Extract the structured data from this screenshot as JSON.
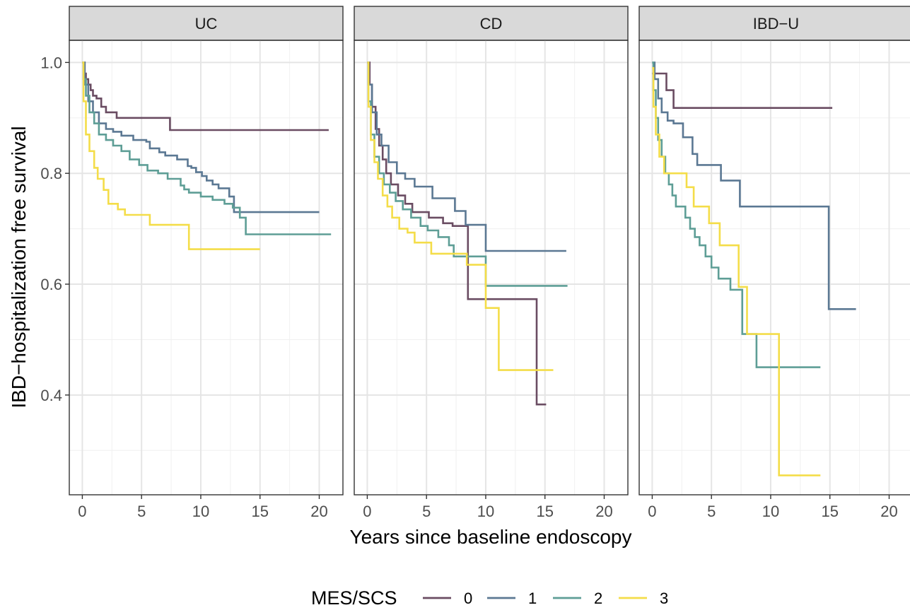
{
  "chart_data": {
    "type": "line",
    "step": true,
    "xlabel": "Years since baseline endoscopy",
    "ylabel": "IBD−hospitalization free survival",
    "xlim": [
      -1.1,
      22
    ],
    "ylim": [
      0.22,
      1.04
    ],
    "x_ticks": [
      0,
      5,
      10,
      15,
      20
    ],
    "y_ticks": [
      0.4,
      0.6,
      0.8,
      1.0
    ],
    "x_tick_labels": [
      "0",
      "5",
      "10",
      "15",
      "20"
    ],
    "y_tick_labels": [
      "0.4",
      "0.6",
      "0.8",
      "1.0"
    ],
    "grid": true,
    "legend": {
      "title": "MES/SCS",
      "position": "bottom",
      "entries": [
        {
          "label": "0",
          "color": "#6a4c62"
        },
        {
          "label": "1",
          "color": "#5b7893"
        },
        {
          "label": "2",
          "color": "#5e9e96"
        },
        {
          "label": "3",
          "color": "#f4dd49"
        }
      ]
    },
    "panels": [
      {
        "title": "UC",
        "series": [
          {
            "name": "0",
            "x": [
              0,
              0.2,
              0.3,
              0.5,
              0.7,
              0.9,
              1.2,
              1.6,
              2.0,
              2.9,
              7.4,
              20.8
            ],
            "y": [
              1.0,
              0.98,
              0.97,
              0.96,
              0.95,
              0.94,
              0.935,
              0.92,
              0.91,
              0.9,
              0.878,
              0.878
            ]
          },
          {
            "name": "1",
            "x": [
              0,
              0.2,
              0.5,
              0.9,
              1.4,
              2.0,
              2.6,
              3.3,
              4.3,
              5.4,
              5.7,
              6.5,
              7.0,
              8.0,
              8.9,
              9.2,
              9.6,
              10.1,
              10.5,
              11.0,
              11.5,
              12.4,
              12.8,
              20.0
            ],
            "y": [
              1.0,
              0.96,
              0.93,
              0.91,
              0.89,
              0.88,
              0.875,
              0.868,
              0.86,
              0.857,
              0.845,
              0.838,
              0.832,
              0.825,
              0.813,
              0.81,
              0.802,
              0.795,
              0.787,
              0.78,
              0.773,
              0.758,
              0.73,
              0.73
            ]
          },
          {
            "name": "2",
            "x": [
              0,
              0.1,
              0.3,
              0.6,
              1.0,
              1.4,
              2.0,
              2.6,
              3.3,
              4.0,
              4.8,
              5.5,
              6.4,
              7.2,
              8.3,
              8.6,
              9.0,
              10.0,
              11.0,
              12.0,
              12.7,
              13.3,
              13.8,
              21.0
            ],
            "y": [
              1.0,
              0.97,
              0.94,
              0.91,
              0.89,
              0.87,
              0.86,
              0.85,
              0.84,
              0.825,
              0.815,
              0.805,
              0.8,
              0.79,
              0.778,
              0.771,
              0.765,
              0.758,
              0.752,
              0.745,
              0.738,
              0.72,
              0.69,
              0.69
            ]
          },
          {
            "name": "3",
            "x": [
              0,
              0.1,
              0.3,
              0.6,
              1.0,
              1.3,
              1.8,
              2.2,
              3.0,
              3.6,
              5.7,
              9.0,
              15.0
            ],
            "y": [
              1.0,
              0.93,
              0.87,
              0.84,
              0.81,
              0.79,
              0.77,
              0.745,
              0.735,
              0.725,
              0.707,
              0.663,
              0.663
            ]
          }
        ]
      },
      {
        "title": "CD",
        "series": [
          {
            "name": "0",
            "x": [
              0,
              0.2,
              0.4,
              0.7,
              1.0,
              1.3,
              1.6,
              2.0,
              2.6,
              3.2,
              3.8,
              5.2,
              6.4,
              7.2,
              8.5,
              14.3,
              15.1
            ],
            "y": [
              1.0,
              0.96,
              0.92,
              0.88,
              0.85,
              0.825,
              0.8,
              0.78,
              0.76,
              0.745,
              0.73,
              0.72,
              0.71,
              0.705,
              0.573,
              0.383,
              0.383
            ]
          },
          {
            "name": "1",
            "x": [
              0,
              0.1,
              0.4,
              0.8,
              1.2,
              1.8,
              2.5,
              3.2,
              4.0,
              5.5,
              7.4,
              8.3,
              10.0,
              16.8
            ],
            "y": [
              1.0,
              0.96,
              0.91,
              0.87,
              0.85,
              0.82,
              0.8,
              0.79,
              0.776,
              0.755,
              0.732,
              0.707,
              0.66,
              0.66
            ]
          },
          {
            "name": "2",
            "x": [
              0,
              0.1,
              0.3,
              0.6,
              1.0,
              1.4,
              1.9,
              2.4,
              3.0,
              3.7,
              4.5,
              5.1,
              6.0,
              6.9,
              7.3,
              10.0,
              16.9
            ],
            "y": [
              1.0,
              0.93,
              0.87,
              0.83,
              0.8,
              0.78,
              0.765,
              0.75,
              0.735,
              0.72,
              0.705,
              0.697,
              0.685,
              0.67,
              0.65,
              0.597,
              0.597
            ]
          },
          {
            "name": "3",
            "x": [
              0,
              0.1,
              0.3,
              0.6,
              0.9,
              1.3,
              1.7,
              2.1,
              2.7,
              3.4,
              4.0,
              5.4,
              8.4,
              10.0,
              11.1,
              15.7
            ],
            "y": [
              1.0,
              0.92,
              0.86,
              0.82,
              0.79,
              0.76,
              0.74,
              0.72,
              0.7,
              0.693,
              0.675,
              0.655,
              0.635,
              0.557,
              0.445,
              0.445
            ]
          }
        ]
      },
      {
        "title": "IBD−U",
        "series": [
          {
            "name": "0",
            "x": [
              0,
              0.6,
              1.2,
              1.8,
              15.2
            ],
            "y": [
              0.98,
              0.98,
              0.95,
              0.918,
              0.918
            ]
          },
          {
            "name": "1",
            "x": [
              0,
              0.2,
              0.5,
              0.8,
              1.3,
              1.8,
              2.6,
              3.4,
              3.8,
              5.8,
              7.4,
              14.9,
              17.2
            ],
            "y": [
              1.0,
              0.97,
              0.935,
              0.91,
              0.895,
              0.89,
              0.865,
              0.835,
              0.815,
              0.787,
              0.74,
              0.555,
              0.555
            ]
          },
          {
            "name": "2",
            "x": [
              0,
              0.1,
              0.3,
              0.5,
              0.8,
              1.1,
              1.4,
              1.7,
              2.0,
              2.4,
              2.8,
              3.2,
              3.6,
              4.0,
              4.5,
              5.0,
              5.6,
              6.6,
              7.6,
              8.8,
              14.2
            ],
            "y": [
              1.0,
              0.95,
              0.9,
              0.86,
              0.83,
              0.8,
              0.78,
              0.76,
              0.74,
              0.74,
              0.72,
              0.7,
              0.685,
              0.67,
              0.65,
              0.63,
              0.61,
              0.59,
              0.51,
              0.45,
              0.45
            ]
          },
          {
            "name": "3",
            "x": [
              0,
              0.1,
              0.3,
              0.6,
              1.0,
              2.2,
              2.9,
              3.5,
              4.8,
              5.7,
              7.3,
              8.0,
              10.7,
              14.2
            ],
            "y": [
              0.99,
              0.92,
              0.87,
              0.83,
              0.8,
              0.8,
              0.775,
              0.74,
              0.71,
              0.67,
              0.595,
              0.51,
              0.255,
              0.255
            ]
          }
        ]
      }
    ]
  }
}
